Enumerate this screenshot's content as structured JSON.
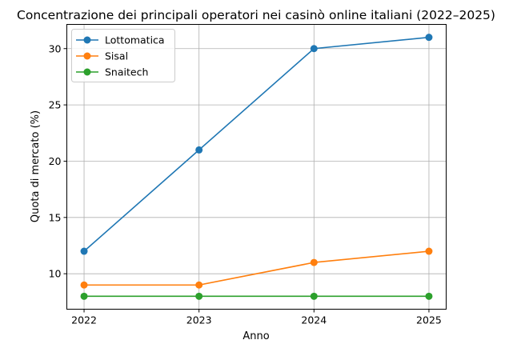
{
  "chart_data": {
    "type": "line",
    "title": "Concentrazione dei principali operatori nei casinò online italiani (2022–2025)",
    "xlabel": "Anno",
    "ylabel": "Quota di mercato (%)",
    "x": [
      2022,
      2023,
      2024,
      2025
    ],
    "x_tick_labels": [
      "2022",
      "2023",
      "2024",
      "2025"
    ],
    "y_ticks": [
      10,
      15,
      20,
      25,
      30
    ],
    "y_tick_labels": [
      "10",
      "15",
      "20",
      "25",
      "30"
    ],
    "xlim": [
      2021.85,
      2025.15
    ],
    "ylim": [
      6.85,
      32.15
    ],
    "grid": true,
    "legend_position": "top-left",
    "series": [
      {
        "name": "Lottomatica",
        "values": [
          12,
          21,
          30,
          31
        ],
        "color": "#1f77b4",
        "marker": "circle"
      },
      {
        "name": "Sisal",
        "values": [
          9,
          9,
          11,
          12
        ],
        "color": "#ff7f0e",
        "marker": "circle"
      },
      {
        "name": "Snaitech",
        "values": [
          8,
          8,
          8,
          8
        ],
        "color": "#2ca02c",
        "marker": "circle"
      }
    ]
  }
}
